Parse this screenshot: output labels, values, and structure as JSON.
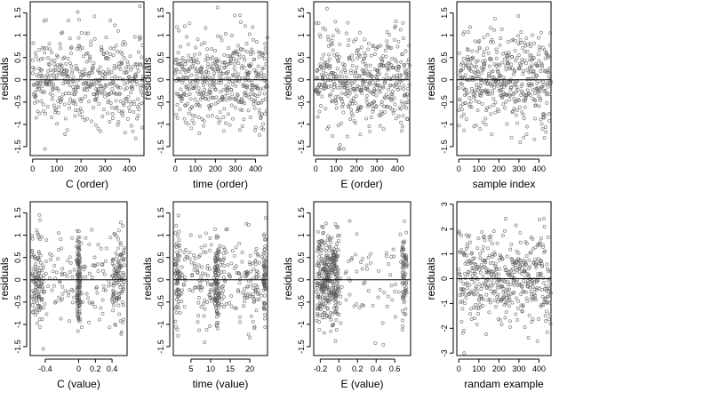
{
  "figure": {
    "background": "#ffffff",
    "point_color": "#555555",
    "reference_line_color": "#000000"
  },
  "chart_data": [
    {
      "type": "scatter",
      "xlabel": "C (order)",
      "ylabel": "residuals",
      "xlim": [
        -10,
        460
      ],
      "ylim": [
        -1.7,
        1.75
      ],
      "xticks": [
        0,
        100,
        200,
        300,
        400
      ],
      "yticks": [
        -1.5,
        -1.0,
        -0.5,
        0.0,
        0.5,
        1.0,
        1.5
      ],
      "reference_line": 0,
      "x_pattern": "index",
      "n_points": 460,
      "y_range_observed": [
        -1.55,
        1.65
      ]
    },
    {
      "type": "scatter",
      "xlabel": "time (order)",
      "ylabel": "residuals",
      "xlim": [
        -10,
        460
      ],
      "ylim": [
        -1.7,
        1.75
      ],
      "xticks": [
        0,
        100,
        200,
        300,
        400
      ],
      "yticks": [
        -1.5,
        -1.0,
        -0.5,
        0.0,
        0.5,
        1.0,
        1.5
      ],
      "reference_line": 0,
      "x_pattern": "index",
      "n_points": 460,
      "y_range_observed": [
        -1.55,
        1.65
      ]
    },
    {
      "type": "scatter",
      "xlabel": "E (order)",
      "ylabel": "residuals",
      "xlim": [
        -10,
        460
      ],
      "ylim": [
        -1.7,
        1.75
      ],
      "xticks": [
        0,
        100,
        200,
        300,
        400
      ],
      "yticks": [
        -1.5,
        -1.0,
        -0.5,
        0.0,
        0.5,
        1.0,
        1.5
      ],
      "reference_line": 0,
      "x_pattern": "index",
      "n_points": 460,
      "y_range_observed": [
        -1.55,
        1.65
      ]
    },
    {
      "type": "scatter",
      "xlabel": "sample index",
      "ylabel": "residuals",
      "xlim": [
        -10,
        460
      ],
      "ylim": [
        -1.7,
        1.75
      ],
      "xticks": [
        0,
        100,
        200,
        300,
        400
      ],
      "yticks": [
        -1.5,
        -1.0,
        -0.5,
        0.0,
        0.5,
        1.0,
        1.5
      ],
      "reference_line": 0,
      "x_pattern": "index",
      "n_points": 460,
      "y_range_observed": [
        -1.55,
        1.65
      ]
    },
    {
      "type": "scatter",
      "xlabel": "C (value)",
      "ylabel": "residuals",
      "xlim": [
        -0.58,
        0.58
      ],
      "ylim": [
        -1.7,
        1.75
      ],
      "xticks": [
        -0.4,
        0.0,
        0.2,
        0.4
      ],
      "yticks": [
        -1.5,
        -1.0,
        -0.5,
        0.0,
        0.5,
        1.0,
        1.5
      ],
      "reference_line": 0,
      "x_pattern": "c-value",
      "n_points": 460,
      "y_range_observed": [
        -1.55,
        1.65
      ]
    },
    {
      "type": "scatter",
      "xlabel": "time (value)",
      "ylabel": "residuals",
      "xlim": [
        0.5,
        24.5
      ],
      "ylim": [
        -1.7,
        1.75
      ],
      "xticks": [
        5,
        10,
        15,
        20
      ],
      "yticks": [
        -1.5,
        -1.0,
        -0.5,
        0.0,
        0.5,
        1.0,
        1.5
      ],
      "reference_line": 0,
      "x_pattern": "time-value",
      "n_points": 460,
      "y_range_observed": [
        -1.55,
        1.65
      ]
    },
    {
      "type": "scatter",
      "xlabel": "E (value)",
      "ylabel": "residuals",
      "xlim": [
        -0.27,
        0.77
      ],
      "ylim": [
        -1.7,
        1.75
      ],
      "xticks": [
        -0.2,
        0.0,
        0.2,
        0.4,
        0.6
      ],
      "yticks": [
        -1.5,
        -1.0,
        -0.5,
        0.0,
        0.5,
        1.0,
        1.5
      ],
      "reference_line": 0,
      "x_pattern": "e-value",
      "n_points": 460,
      "y_range_observed": [
        -1.55,
        1.65
      ]
    },
    {
      "type": "scatter",
      "xlabel": "randam example",
      "ylabel": "residuals",
      "xlim": [
        -10,
        460
      ],
      "ylim": [
        -3.1,
        3.1
      ],
      "xticks": [
        0,
        100,
        200,
        300,
        400
      ],
      "yticks": [
        -3,
        -2,
        -1,
        0,
        1,
        2,
        3
      ],
      "reference_line": 0,
      "x_pattern": "index",
      "n_points": 460,
      "y_range_observed": [
        -3.0,
        2.9
      ]
    }
  ]
}
